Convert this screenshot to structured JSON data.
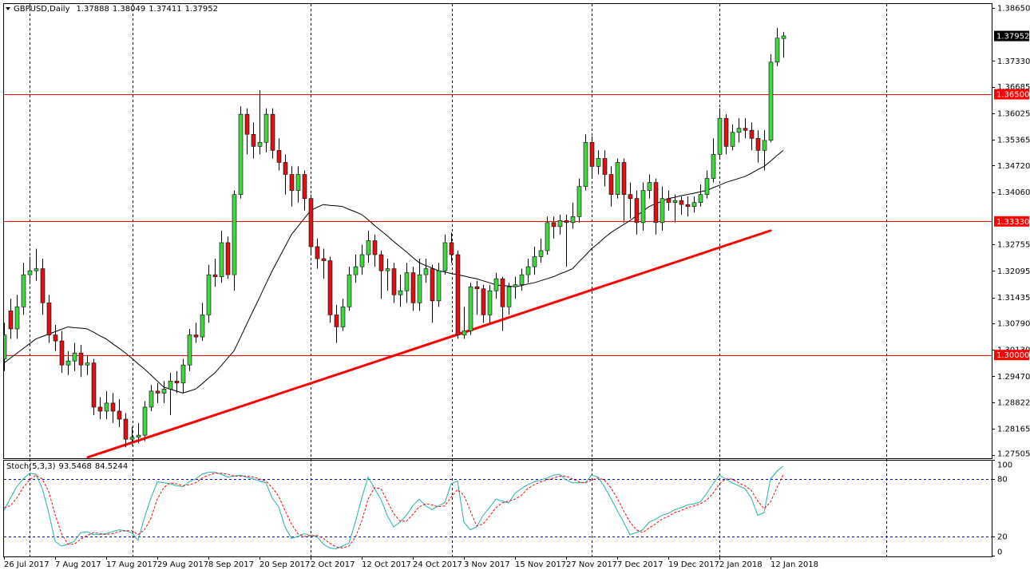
{
  "chart_data": [
    {
      "type": "candlestick",
      "title": "GBPUSD,Daily",
      "categories": [
        "26 Jul 2017",
        null,
        null,
        null,
        null,
        null,
        null,
        null,
        "7 Aug 2017",
        null,
        null,
        null,
        null,
        null,
        null,
        null,
        "17 Aug 2017",
        null,
        null,
        null,
        null,
        null,
        null,
        null,
        "29 Aug 2017",
        null,
        null,
        null,
        null,
        null,
        null,
        null,
        "8 Sep 2017",
        null,
        null,
        null,
        null,
        null,
        null,
        null,
        "20 Sep 2017",
        null,
        null,
        null,
        null,
        null,
        null,
        null,
        "2 Oct 2017",
        null,
        null,
        null,
        null,
        null,
        null,
        null,
        "12 Oct 2017",
        null,
        null,
        null,
        null,
        null,
        null,
        null,
        "24 Oct 2017",
        null,
        null,
        null,
        null,
        null,
        null,
        null,
        "3 Nov 2017",
        null,
        null,
        null,
        null,
        null,
        null,
        null,
        "15 Nov 2017",
        null,
        null,
        null,
        null,
        null,
        null,
        null,
        "27 Nov 2017",
        null,
        null,
        null,
        null,
        null,
        null,
        null,
        "7 Dec 2017",
        null,
        null,
        null,
        null,
        null,
        null,
        null,
        "19 Dec 2017",
        null,
        null,
        null,
        null,
        null,
        null,
        null,
        "2 Jan 2018",
        null,
        null,
        null,
        null,
        null,
        null,
        null,
        "12 Jan 2018",
        null,
        null
      ],
      "open": [
        1.299,
        1.311,
        1.3065,
        1.312,
        1.32,
        1.321,
        1.3215,
        1.313,
        1.305,
        1.3035,
        1.2975,
        1.2985,
        1.3005,
        1.2975,
        1.298,
        1.287,
        1.286,
        1.288,
        1.286,
        1.284,
        1.279,
        1.2795,
        1.28,
        1.287,
        1.291,
        1.2905,
        1.2915,
        1.2935,
        1.293,
        1.2975,
        1.305,
        1.3045,
        1.31,
        1.32,
        1.3195,
        1.328,
        1.32,
        1.34,
        1.36,
        1.355,
        1.352,
        1.353,
        1.36,
        1.351,
        1.348,
        1.345,
        1.341,
        1.345,
        1.339,
        1.327,
        1.324,
        1.3235,
        1.31,
        1.307,
        1.312,
        1.32,
        1.322,
        1.325,
        1.3285,
        1.325,
        1.321,
        1.3215,
        1.315,
        1.316,
        1.3205,
        1.313,
        1.32,
        1.3215,
        1.3135,
        1.321,
        1.328,
        1.325,
        1.305,
        1.306,
        1.317,
        1.3165,
        1.31,
        1.316,
        1.319,
        1.312,
        1.317,
        1.3175,
        1.32,
        1.322,
        1.3245,
        1.326,
        1.333,
        1.332,
        1.3335,
        1.333,
        1.3345,
        1.342,
        1.353,
        1.347,
        1.349,
        1.345,
        1.34,
        1.348,
        1.34,
        1.339,
        1.333,
        1.341,
        1.343,
        1.333,
        1.339,
        1.338,
        1.3385,
        1.3375,
        1.337,
        1.338,
        1.34,
        1.344,
        1.35,
        1.359,
        1.352,
        1.3555,
        1.3565,
        1.356,
        1.354,
        1.351,
        1.3535,
        1.373,
        1.37888
      ],
      "high": [
        1.308,
        1.314,
        1.315,
        1.323,
        1.3245,
        1.3265,
        1.324,
        1.315,
        1.3075,
        1.306,
        1.301,
        1.303,
        1.3025,
        1.3,
        1.299,
        1.2895,
        1.291,
        1.2905,
        1.289,
        1.2855,
        1.282,
        1.283,
        1.2885,
        1.2925,
        1.293,
        1.2935,
        1.2955,
        1.296,
        1.299,
        1.3065,
        1.308,
        1.313,
        1.3225,
        1.324,
        1.331,
        1.3295,
        1.341,
        1.362,
        1.3615,
        1.358,
        1.366,
        1.3615,
        1.3615,
        1.354,
        1.35,
        1.347,
        1.347,
        1.346,
        1.34,
        1.329,
        1.3265,
        1.3245,
        1.3125,
        1.314,
        1.322,
        1.325,
        1.3275,
        1.331,
        1.33,
        1.326,
        1.324,
        1.323,
        1.32,
        1.323,
        1.322,
        1.324,
        1.324,
        1.3225,
        1.323,
        1.33,
        1.3305,
        1.326,
        1.312,
        1.318,
        1.3185,
        1.3175,
        1.3175,
        1.3205,
        1.3195,
        1.318,
        1.3195,
        1.3215,
        1.324,
        1.327,
        1.329,
        1.3345,
        1.3345,
        1.335,
        1.335,
        1.338,
        1.344,
        1.355,
        1.3545,
        1.351,
        1.351,
        1.347,
        1.349,
        1.349,
        1.343,
        1.341,
        1.343,
        1.345,
        1.344,
        1.342,
        1.341,
        1.34,
        1.3395,
        1.3395,
        1.3395,
        1.3425,
        1.346,
        1.354,
        1.3615,
        1.36,
        1.3575,
        1.359,
        1.359,
        1.358,
        1.356,
        1.356,
        1.375,
        1.3815,
        1.38049
      ],
      "low": [
        1.296,
        1.304,
        1.304,
        1.31,
        1.318,
        1.3185,
        1.31,
        1.303,
        1.301,
        1.2955,
        1.295,
        1.296,
        1.2945,
        1.295,
        1.285,
        1.284,
        1.284,
        1.283,
        1.282,
        1.277,
        1.2775,
        1.278,
        1.2785,
        1.286,
        1.288,
        1.288,
        1.285,
        1.2905,
        1.2905,
        1.296,
        1.303,
        1.3035,
        1.308,
        1.317,
        1.318,
        1.319,
        1.316,
        1.339,
        1.35,
        1.349,
        1.35,
        1.3505,
        1.349,
        1.346,
        1.34,
        1.337,
        1.338,
        1.336,
        1.325,
        1.3215,
        1.319,
        1.308,
        1.303,
        1.306,
        1.311,
        1.318,
        1.32,
        1.323,
        1.322,
        1.314,
        1.316,
        1.313,
        1.312,
        1.313,
        1.311,
        1.311,
        1.318,
        1.308,
        1.312,
        1.32,
        1.323,
        1.304,
        1.304,
        1.305,
        1.31,
        1.308,
        1.308,
        1.314,
        1.306,
        1.31,
        1.314,
        1.316,
        1.318,
        1.32,
        1.323,
        1.325,
        1.329,
        1.33,
        1.322,
        1.3315,
        1.333,
        1.341,
        1.344,
        1.345,
        1.342,
        1.337,
        1.339,
        1.333,
        1.334,
        1.33,
        1.331,
        1.339,
        1.33,
        1.331,
        1.336,
        1.333,
        1.335,
        1.3345,
        1.3355,
        1.337,
        1.339,
        1.343,
        1.349,
        1.35,
        1.351,
        1.353,
        1.354,
        1.351,
        1.348,
        1.346,
        1.353,
        1.372,
        1.37411
      ],
      "close": [
        1.305,
        1.3065,
        1.312,
        1.32,
        1.321,
        1.3215,
        1.313,
        1.305,
        1.3035,
        1.2975,
        1.2985,
        1.3005,
        1.2975,
        1.298,
        1.287,
        1.286,
        1.288,
        1.286,
        1.284,
        1.279,
        1.2795,
        1.28,
        1.287,
        1.291,
        1.2905,
        1.2915,
        1.2935,
        1.293,
        1.2975,
        1.305,
        1.3045,
        1.31,
        1.32,
        1.3195,
        1.328,
        1.32,
        1.34,
        1.36,
        1.355,
        1.352,
        1.353,
        1.36,
        1.351,
        1.348,
        1.345,
        1.341,
        1.345,
        1.339,
        1.327,
        1.324,
        1.3235,
        1.31,
        1.307,
        1.312,
        1.32,
        1.322,
        1.325,
        1.3285,
        1.325,
        1.321,
        1.3215,
        1.315,
        1.316,
        1.3205,
        1.313,
        1.32,
        1.3215,
        1.3135,
        1.321,
        1.328,
        1.325,
        1.305,
        1.306,
        1.317,
        1.3165,
        1.31,
        1.316,
        1.319,
        1.312,
        1.317,
        1.3175,
        1.32,
        1.322,
        1.3245,
        1.326,
        1.333,
        1.332,
        1.3335,
        1.333,
        1.3345,
        1.342,
        1.353,
        1.347,
        1.349,
        1.345,
        1.34,
        1.348,
        1.34,
        1.339,
        1.333,
        1.341,
        1.343,
        1.333,
        1.339,
        1.338,
        1.3385,
        1.3375,
        1.337,
        1.338,
        1.34,
        1.344,
        1.35,
        1.359,
        1.352,
        1.3555,
        1.3565,
        1.356,
        1.354,
        1.351,
        1.3535,
        1.373,
        1.379,
        1.37952
      ],
      "up_color": "#3cd83c",
      "down_color": "#e01010",
      "outline_color": "#000000",
      "ylim": [
        1.27505,
        1.3865
      ],
      "yticks": [
        {
          "value": 1.3865,
          "label": "1.38650"
        },
        {
          "value": 1.3733,
          "label": "1.37330"
        },
        1.36685,
        1.36025,
        1.35365,
        {
          "value": 1.3472,
          "label": "1.34720"
        },
        {
          "value": 1.3406,
          "label": "1.34060"
        },
        1.32755,
        1.32095,
        1.31435,
        {
          "value": 1.3079,
          "label": "1.30790"
        },
        {
          "value": 1.3013,
          "label": "1.30130"
        },
        {
          "value": 1.2947,
          "label": "1.29470"
        },
        1.28822,
        1.28165,
        1.27505
      ],
      "levels": [
        {
          "value": 1.365,
          "label": "1.36500"
        },
        {
          "value": 1.3333,
          "label": "1.33330"
        },
        {
          "value": 1.3,
          "label": "1.30000"
        }
      ],
      "level_color": "#ff0000",
      "moving_average": {
        "color": "#000000",
        "values": [
          1.298,
          1.2992,
          1.3004,
          1.3016,
          1.3028,
          1.304,
          1.3046,
          1.3052,
          1.3058,
          1.3064,
          1.307,
          1.3068,
          1.3067,
          1.3065,
          1.3057,
          1.3048,
          1.304,
          1.3028,
          1.3017,
          1.3005,
          1.2992,
          1.2978,
          1.2965,
          1.295,
          1.2935,
          1.292,
          1.2915,
          1.291,
          1.2905,
          1.291,
          1.2915,
          1.2928,
          1.2942,
          1.2955,
          1.2973,
          1.2992,
          1.301,
          1.3043,
          1.3077,
          1.311,
          1.3143,
          1.3177,
          1.321,
          1.324,
          1.327,
          1.33,
          1.332,
          1.334,
          1.336,
          1.3368,
          1.3375,
          1.3373,
          1.3372,
          1.337,
          1.3363,
          1.3357,
          1.335,
          1.3337,
          1.3323,
          1.331,
          1.3297,
          1.3283,
          1.327,
          1.3257,
          1.3243,
          1.323,
          1.3223,
          1.3217,
          1.321,
          1.3207,
          1.3203,
          1.32,
          1.3197,
          1.3193,
          1.319,
          1.3185,
          1.318,
          1.3175,
          1.3173,
          1.3172,
          1.317,
          1.3173,
          1.3177,
          1.318,
          1.3185,
          1.319,
          1.3195,
          1.3202,
          1.3208,
          1.3215,
          1.3232,
          1.3248,
          1.3265,
          1.3278,
          1.3292,
          1.3305,
          1.3315,
          1.3325,
          1.3335,
          1.3347,
          1.3358,
          1.337,
          1.3377,
          1.3383,
          1.339,
          1.3393,
          1.3397,
          1.34,
          1.3403,
          1.3407,
          1.341,
          1.3417,
          1.3423,
          1.343,
          1.3435,
          1.344,
          1.3445,
          1.3453,
          1.3462,
          1.347,
          1.3483,
          1.3497,
          1.351
        ]
      },
      "trendline": {
        "color": "#ff0000",
        "values": [
          1.2745,
          1.331
        ]
      },
      "last_price_color": "#000000"
    },
    {
      "type": "line",
      "title": "Stoch(5,3,3)",
      "series": [
        {
          "color": "#20b2aa",
          "values": [
            47,
            60,
            72,
            80,
            86,
            85,
            70,
            45,
            15,
            10,
            12,
            15,
            24,
            25,
            22,
            22,
            23,
            25,
            27,
            26,
            24,
            16,
            40,
            60,
            77,
            76,
            75,
            73,
            72,
            77,
            80,
            85,
            87,
            87,
            85,
            82,
            83,
            84,
            82,
            80,
            78,
            76,
            60,
            51,
            30,
            18,
            20,
            23,
            21,
            20,
            12,
            8,
            7,
            10,
            13,
            35,
            60,
            82,
            70,
            59,
            42,
            30,
            35,
            42,
            52,
            59,
            52,
            48,
            52,
            55,
            75,
            78,
            35,
            27,
            30,
            42,
            50,
            59,
            57,
            55,
            65,
            70,
            74,
            77,
            79,
            81,
            84,
            85,
            79,
            76,
            76,
            76,
            84,
            82,
            72,
            60,
            47,
            35,
            22,
            24,
            27,
            35,
            38,
            42,
            44,
            48,
            50,
            53,
            54,
            56,
            65,
            75,
            84,
            80,
            76,
            73,
            70,
            60,
            42,
            45,
            80,
            88,
            93.5468
          ]
        },
        {
          "color": "#ff0000",
          "dashed": true,
          "values": [
            50,
            52,
            60,
            71,
            79,
            84,
            80,
            67,
            43,
            23,
            12,
            12,
            17,
            21,
            24,
            23,
            22,
            23,
            25,
            26,
            26,
            22,
            27,
            39,
            59,
            71,
            76,
            75,
            73,
            74,
            76,
            81,
            84,
            86,
            86,
            85,
            83,
            83,
            83,
            82,
            80,
            78,
            71,
            62,
            47,
            33,
            23,
            20,
            21,
            21,
            18,
            13,
            9,
            8,
            10,
            19,
            36,
            59,
            71,
            70,
            57,
            44,
            36,
            36,
            43,
            51,
            54,
            53,
            51,
            52,
            61,
            69,
            63,
            47,
            31,
            33,
            41,
            50,
            55,
            57,
            59,
            63,
            70,
            74,
            77,
            79,
            81,
            83,
            83,
            80,
            77,
            76,
            79,
            81,
            79,
            71,
            60,
            47,
            35,
            27,
            24,
            29,
            33,
            38,
            41,
            45,
            47,
            50,
            52,
            54,
            58,
            65,
            75,
            80,
            80,
            76,
            73,
            68,
            57,
            49,
            56,
            71,
            84.5244
          ]
        }
      ],
      "ylim": [
        0,
        100
      ],
      "yticks": [
        0,
        20,
        80,
        100
      ],
      "levels": [
        20,
        80
      ],
      "level_color": "#0000ff"
    }
  ]
}
